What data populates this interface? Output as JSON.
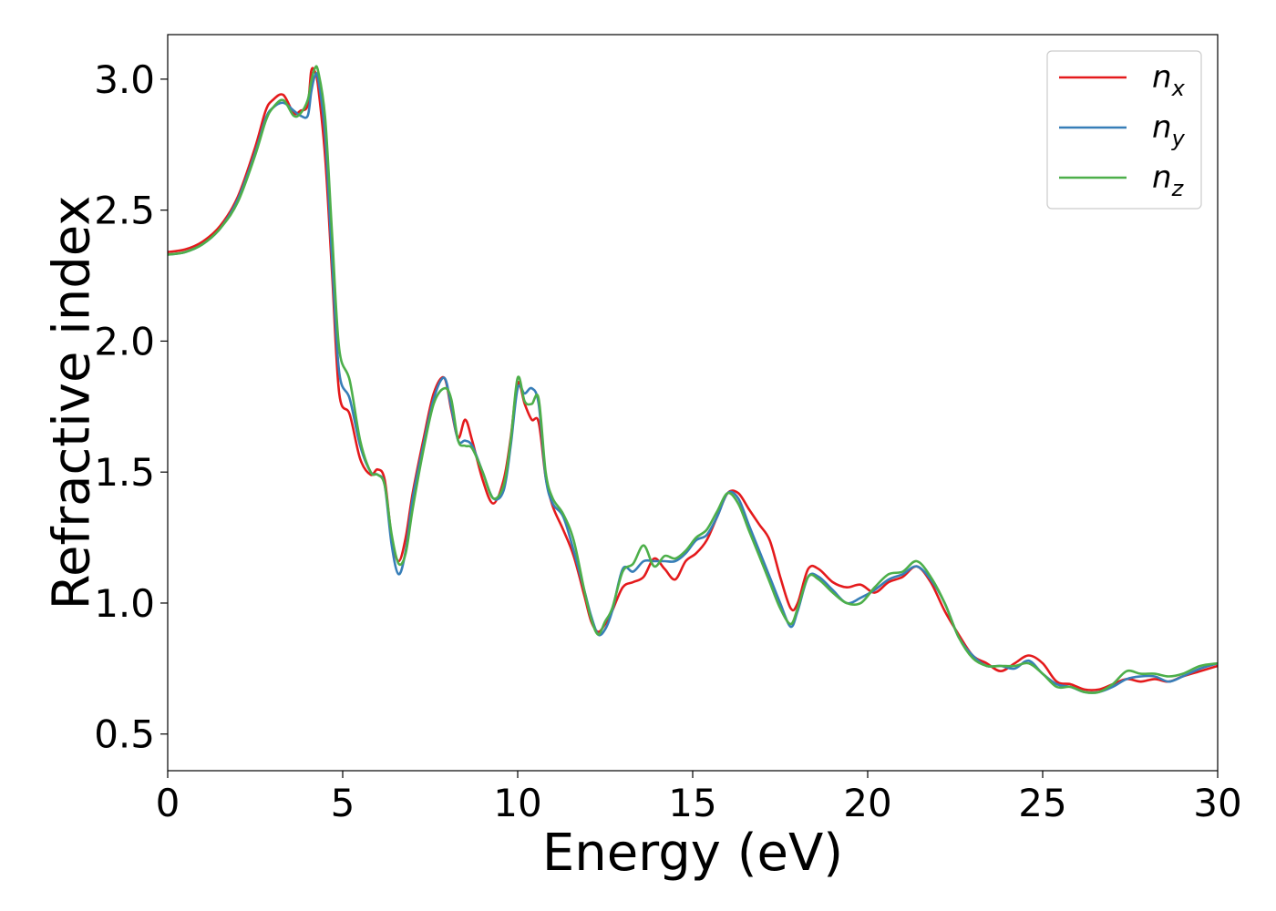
{
  "chart_data": {
    "type": "line",
    "title": "",
    "xlabel": "Energy (eV)",
    "ylabel": "Refractive index",
    "xlim": [
      0,
      30
    ],
    "ylim": [
      0.36,
      3.17
    ],
    "xticks": [
      0,
      5,
      10,
      15,
      20,
      25,
      30
    ],
    "yticks": [
      0.5,
      1.0,
      1.5,
      2.0,
      2.5,
      3.0
    ],
    "xtick_labels": [
      "0",
      "5",
      "10",
      "15",
      "20",
      "25",
      "30"
    ],
    "ytick_labels": [
      "0.5",
      "1.0",
      "1.5",
      "2.0",
      "2.5",
      "3.0"
    ],
    "grid": false,
    "legend_position": "top-right",
    "series": [
      {
        "name": "n_x",
        "label_main": "n",
        "label_sub": "x",
        "color": "#e41a1c",
        "x": [
          0,
          0.5,
          1,
          1.5,
          2,
          2.5,
          2.8,
          3.0,
          3.3,
          3.6,
          3.8,
          4.0,
          4.1,
          4.2,
          4.3,
          4.5,
          4.7,
          4.9,
          5.2,
          5.5,
          5.8,
          6.0,
          6.2,
          6.4,
          6.6,
          6.8,
          7.0,
          7.3,
          7.6,
          7.9,
          8.1,
          8.3,
          8.5,
          8.7,
          9.0,
          9.3,
          9.6,
          9.8,
          10.0,
          10.2,
          10.4,
          10.6,
          10.8,
          11.0,
          11.3,
          11.6,
          11.9,
          12.1,
          12.3,
          12.5,
          12.7,
          13.0,
          13.3,
          13.6,
          13.9,
          14.2,
          14.5,
          14.8,
          15.1,
          15.4,
          15.7,
          16.0,
          16.3,
          16.6,
          16.9,
          17.2,
          17.5,
          17.8,
          18.0,
          18.3,
          18.6,
          19.0,
          19.4,
          19.8,
          20.2,
          20.6,
          21.0,
          21.4,
          21.8,
          22.2,
          22.6,
          23.0,
          23.4,
          23.8,
          24.2,
          24.6,
          25.0,
          25.4,
          25.8,
          26.2,
          26.6,
          27.0,
          27.4,
          27.8,
          28.2,
          28.6,
          29.0,
          29.5,
          30.0
        ],
        "y": [
          2.34,
          2.35,
          2.38,
          2.44,
          2.55,
          2.74,
          2.88,
          2.92,
          2.94,
          2.87,
          2.88,
          2.9,
          3.03,
          3.03,
          2.97,
          2.7,
          2.25,
          1.8,
          1.72,
          1.55,
          1.49,
          1.51,
          1.47,
          1.25,
          1.16,
          1.25,
          1.42,
          1.62,
          1.8,
          1.86,
          1.74,
          1.63,
          1.7,
          1.62,
          1.47,
          1.38,
          1.47,
          1.63,
          1.84,
          1.76,
          1.7,
          1.69,
          1.48,
          1.37,
          1.28,
          1.18,
          1.03,
          0.93,
          0.89,
          0.92,
          0.97,
          1.06,
          1.08,
          1.1,
          1.17,
          1.13,
          1.09,
          1.16,
          1.19,
          1.24,
          1.33,
          1.42,
          1.42,
          1.36,
          1.3,
          1.24,
          1.1,
          0.98,
          1.0,
          1.13,
          1.13,
          1.08,
          1.06,
          1.07,
          1.04,
          1.08,
          1.1,
          1.14,
          1.08,
          0.97,
          0.88,
          0.8,
          0.77,
          0.74,
          0.77,
          0.8,
          0.77,
          0.7,
          0.69,
          0.67,
          0.67,
          0.69,
          0.71,
          0.7,
          0.71,
          0.7,
          0.72,
          0.74,
          0.76
        ]
      },
      {
        "name": "n_y",
        "label_main": "n",
        "label_sub": "y",
        "color": "#377eb8",
        "x": [
          0,
          0.5,
          1,
          1.5,
          2,
          2.5,
          2.8,
          3.0,
          3.3,
          3.6,
          3.8,
          4.0,
          4.1,
          4.2,
          4.3,
          4.5,
          4.7,
          4.9,
          5.2,
          5.5,
          5.8,
          6.0,
          6.2,
          6.4,
          6.6,
          6.8,
          7.0,
          7.3,
          7.6,
          7.9,
          8.1,
          8.3,
          8.5,
          8.7,
          9.0,
          9.3,
          9.6,
          9.8,
          10.0,
          10.2,
          10.4,
          10.6,
          10.8,
          11.0,
          11.3,
          11.6,
          11.9,
          12.1,
          12.3,
          12.5,
          12.7,
          13.0,
          13.3,
          13.6,
          13.9,
          14.2,
          14.5,
          14.8,
          15.1,
          15.4,
          15.7,
          16.0,
          16.3,
          16.6,
          16.9,
          17.2,
          17.5,
          17.8,
          18.0,
          18.3,
          18.6,
          19.0,
          19.4,
          19.8,
          20.2,
          20.6,
          21.0,
          21.4,
          21.8,
          22.2,
          22.6,
          23.0,
          23.4,
          23.8,
          24.2,
          24.6,
          25.0,
          25.4,
          25.8,
          26.2,
          26.6,
          27.0,
          27.4,
          27.8,
          28.2,
          28.6,
          29.0,
          29.5,
          30.0
        ],
        "y": [
          2.33,
          2.34,
          2.37,
          2.43,
          2.54,
          2.72,
          2.85,
          2.89,
          2.91,
          2.88,
          2.86,
          2.86,
          2.95,
          3.01,
          3.0,
          2.78,
          2.3,
          1.88,
          1.78,
          1.6,
          1.5,
          1.49,
          1.45,
          1.22,
          1.11,
          1.2,
          1.4,
          1.6,
          1.78,
          1.86,
          1.75,
          1.62,
          1.62,
          1.6,
          1.5,
          1.4,
          1.43,
          1.6,
          1.82,
          1.8,
          1.82,
          1.76,
          1.48,
          1.38,
          1.33,
          1.2,
          1.05,
          0.95,
          0.88,
          0.9,
          0.97,
          1.13,
          1.12,
          1.16,
          1.16,
          1.16,
          1.16,
          1.19,
          1.24,
          1.26,
          1.33,
          1.42,
          1.4,
          1.3,
          1.2,
          1.1,
          1.0,
          0.91,
          0.97,
          1.1,
          1.1,
          1.05,
          1.0,
          1.02,
          1.05,
          1.09,
          1.11,
          1.14,
          1.09,
          1.0,
          0.87,
          0.8,
          0.76,
          0.76,
          0.75,
          0.78,
          0.73,
          0.69,
          0.68,
          0.66,
          0.66,
          0.68,
          0.71,
          0.72,
          0.72,
          0.7,
          0.72,
          0.75,
          0.77
        ]
      },
      {
        "name": "n_z",
        "label_main": "n",
        "label_sub": "z",
        "color": "#4daf4a",
        "x": [
          0,
          0.5,
          1,
          1.5,
          2,
          2.5,
          2.8,
          3.0,
          3.3,
          3.6,
          3.8,
          4.0,
          4.1,
          4.2,
          4.3,
          4.5,
          4.7,
          4.9,
          5.2,
          5.5,
          5.8,
          6.0,
          6.2,
          6.4,
          6.6,
          6.8,
          7.0,
          7.3,
          7.6,
          7.9,
          8.1,
          8.3,
          8.5,
          8.7,
          9.0,
          9.3,
          9.6,
          9.8,
          10.0,
          10.2,
          10.4,
          10.6,
          10.8,
          11.0,
          11.3,
          11.6,
          11.9,
          12.1,
          12.3,
          12.5,
          12.7,
          13.0,
          13.3,
          13.6,
          13.9,
          14.2,
          14.5,
          14.8,
          15.1,
          15.4,
          15.7,
          16.0,
          16.3,
          16.6,
          16.9,
          17.2,
          17.5,
          17.8,
          18.0,
          18.3,
          18.6,
          19.0,
          19.4,
          19.8,
          20.2,
          20.6,
          21.0,
          21.4,
          21.8,
          22.2,
          22.6,
          23.0,
          23.4,
          23.8,
          24.2,
          24.6,
          25.0,
          25.4,
          25.8,
          26.2,
          26.6,
          27.0,
          27.4,
          27.8,
          28.2,
          28.6,
          29.0,
          29.5,
          30.0
        ],
        "y": [
          2.33,
          2.34,
          2.37,
          2.43,
          2.53,
          2.71,
          2.84,
          2.89,
          2.92,
          2.86,
          2.87,
          2.92,
          2.99,
          3.04,
          3.03,
          2.85,
          2.4,
          1.97,
          1.85,
          1.62,
          1.5,
          1.49,
          1.45,
          1.26,
          1.15,
          1.19,
          1.36,
          1.58,
          1.76,
          1.82,
          1.78,
          1.62,
          1.6,
          1.59,
          1.5,
          1.4,
          1.45,
          1.62,
          1.86,
          1.77,
          1.76,
          1.78,
          1.5,
          1.4,
          1.34,
          1.24,
          1.05,
          0.94,
          0.88,
          0.93,
          0.98,
          1.12,
          1.15,
          1.22,
          1.14,
          1.18,
          1.17,
          1.2,
          1.25,
          1.28,
          1.35,
          1.42,
          1.38,
          1.28,
          1.18,
          1.08,
          0.98,
          0.92,
          0.98,
          1.1,
          1.09,
          1.04,
          1.0,
          1.0,
          1.06,
          1.11,
          1.12,
          1.16,
          1.1,
          1.0,
          0.87,
          0.79,
          0.76,
          0.76,
          0.76,
          0.77,
          0.73,
          0.68,
          0.68,
          0.66,
          0.66,
          0.69,
          0.74,
          0.73,
          0.73,
          0.72,
          0.73,
          0.76,
          0.77
        ]
      }
    ]
  }
}
